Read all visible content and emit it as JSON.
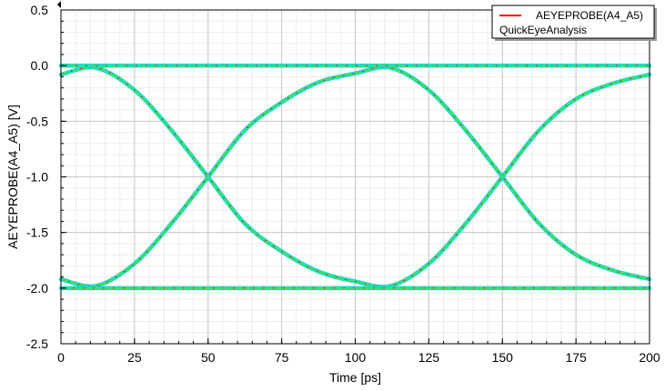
{
  "chart_data": {
    "type": "line",
    "title": "",
    "xlabel": "Time [ps]",
    "ylabel": "AEYEPROBE(A4_A5) [V]",
    "xlim": [
      0,
      200
    ],
    "ylim": [
      -2.5,
      0.5
    ],
    "x_ticks": [
      0,
      25,
      50,
      75,
      100,
      125,
      150,
      175,
      200
    ],
    "x_tick_labels": [
      "0",
      "25",
      "50",
      "75",
      "100",
      "125",
      "150",
      "175",
      "200"
    ],
    "y_ticks": [
      0.5,
      0.0,
      -0.5,
      -1.0,
      -1.5,
      -2.0,
      -2.5
    ],
    "y_tick_labels": [
      "0.5",
      "0.0",
      "-0.5",
      "-1.0",
      "-1.5",
      "-2.0",
      "-2.5"
    ],
    "grid": true,
    "legend": {
      "placement": "top-right",
      "entries": [
        {
          "label": "AEYEPROBE(A4_A5)",
          "color": "#ff0000"
        }
      ],
      "subtitle": "QuickEyeAnalysis"
    },
    "series": [
      {
        "color": "#20e890",
        "x": [
          0,
          12,
          25,
          37.5,
          50,
          62.5,
          75,
          87.5,
          100,
          112,
          125,
          137.5,
          150,
          162.5,
          175,
          187.5,
          200
        ],
        "y": [
          -0.08,
          -0.02,
          -0.22,
          -0.58,
          -1.0,
          -1.42,
          -1.67,
          -1.85,
          -1.94,
          -1.98,
          -1.78,
          -1.42,
          -1.0,
          -0.58,
          -0.3,
          -0.16,
          -0.08
        ]
      },
      {
        "color": "#20e890",
        "x": [
          0,
          12,
          25,
          37.5,
          50,
          62.5,
          75,
          87.5,
          100,
          112,
          125,
          137.5,
          150,
          162.5,
          175,
          187.5,
          200
        ],
        "y": [
          -1.92,
          -1.98,
          -1.78,
          -1.42,
          -1.0,
          -0.58,
          -0.33,
          -0.15,
          -0.07,
          -0.02,
          -0.22,
          -0.58,
          -1.0,
          -1.42,
          -1.7,
          -1.84,
          -1.92
        ]
      },
      {
        "color": "#20e890",
        "x": [
          0,
          200
        ],
        "y": [
          0.0,
          0.0
        ]
      },
      {
        "color": "#20e890",
        "x": [
          0,
          200
        ],
        "y": [
          -2.0,
          -2.0
        ]
      }
    ]
  }
}
